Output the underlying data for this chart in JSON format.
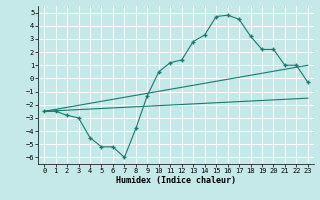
{
  "xlabel": "Humidex (Indice chaleur)",
  "background_color": "#c5e8e8",
  "grid_color": "#ffffff",
  "line_color": "#1a7a6e",
  "xlim_min": -0.5,
  "xlim_max": 23.5,
  "ylim_min": -6.5,
  "ylim_max": 5.5,
  "yticks": [
    -6,
    -5,
    -4,
    -3,
    -2,
    -1,
    0,
    1,
    2,
    3,
    4,
    5
  ],
  "xticks": [
    0,
    1,
    2,
    3,
    4,
    5,
    6,
    7,
    8,
    9,
    10,
    11,
    12,
    13,
    14,
    15,
    16,
    17,
    18,
    19,
    20,
    21,
    22,
    23
  ],
  "main_x": [
    0,
    1,
    2,
    3,
    4,
    5,
    6,
    7,
    8,
    9,
    10,
    11,
    12,
    13,
    14,
    15,
    16,
    17,
    18,
    19,
    20,
    21,
    22,
    23
  ],
  "main_y": [
    -2.5,
    -2.5,
    -2.8,
    -3.0,
    -4.5,
    -5.2,
    -5.2,
    -6.0,
    -3.8,
    -1.3,
    0.5,
    1.2,
    1.4,
    2.8,
    3.3,
    4.7,
    4.8,
    4.5,
    3.2,
    2.2,
    2.2,
    1.0,
    1.0,
    -0.3
  ],
  "line2_x": [
    0,
    23
  ],
  "line2_y": [
    -2.5,
    1.0
  ],
  "line3_x": [
    0,
    23
  ],
  "line3_y": [
    -2.5,
    -1.5
  ]
}
